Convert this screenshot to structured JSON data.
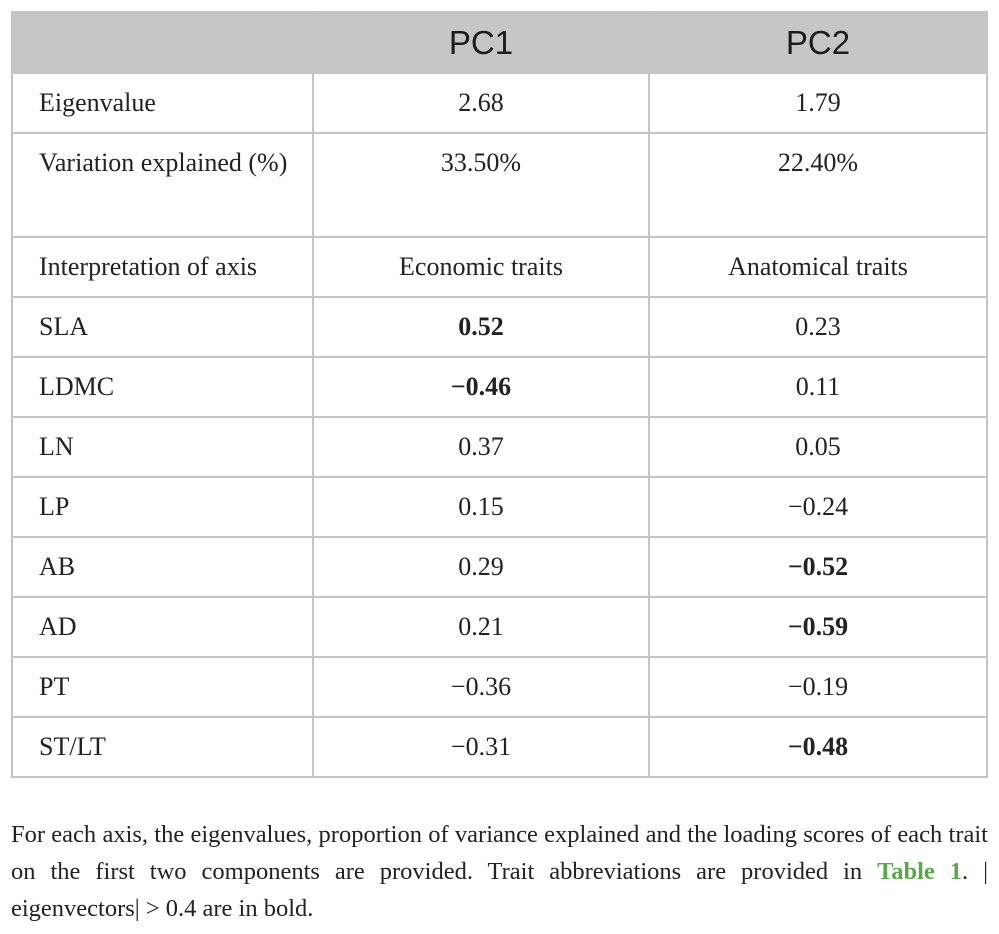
{
  "table": {
    "headers": [
      "",
      "PC1",
      "PC2"
    ],
    "rows": [
      {
        "label": "Eigenvalue",
        "pc1": "2.68",
        "pc2": "1.79",
        "pc1_bold": false,
        "pc2_bold": false
      },
      {
        "label": "Variation explained (%)",
        "pc1": "33.50%",
        "pc2": "22.40%",
        "pc1_bold": false,
        "pc2_bold": false
      },
      {
        "label": "Interpretation of axis",
        "pc1": "Economic traits",
        "pc2": "Anatomical traits",
        "pc1_bold": false,
        "pc2_bold": false
      },
      {
        "label": "SLA",
        "pc1": "0.52",
        "pc2": "0.23",
        "pc1_bold": true,
        "pc2_bold": false
      },
      {
        "label": "LDMC",
        "pc1": "−0.46",
        "pc2": "0.11",
        "pc1_bold": true,
        "pc2_bold": false
      },
      {
        "label": "LN",
        "pc1": "0.37",
        "pc2": "0.05",
        "pc1_bold": false,
        "pc2_bold": false
      },
      {
        "label": "LP",
        "pc1": "0.15",
        "pc2": "−0.24",
        "pc1_bold": false,
        "pc2_bold": false
      },
      {
        "label": "AB",
        "pc1": "0.29",
        "pc2": "−0.52",
        "pc1_bold": false,
        "pc2_bold": true
      },
      {
        "label": "AD",
        "pc1": "0.21",
        "pc2": "−0.59",
        "pc1_bold": false,
        "pc2_bold": true
      },
      {
        "label": "PT",
        "pc1": "−0.36",
        "pc2": "−0.19",
        "pc1_bold": false,
        "pc2_bold": false
      },
      {
        "label": "ST/LT",
        "pc1": "−0.31",
        "pc2": "−0.48",
        "pc1_bold": false,
        "pc2_bold": true
      }
    ]
  },
  "caption": {
    "text_before": "For each axis, the eigenvalues, proportion of variance explained and the loading scores of each trait on the first two components are provided. Trait abbreviations are provided in ",
    "link_text": "Table 1",
    "text_after": ". | eigenvectors| > 0.4 are in bold.",
    "link_color": "#5aa84a"
  },
  "colors": {
    "header_background": "#c6c6c6",
    "grid_lines": "#c4c4c4",
    "text": "#222222"
  }
}
